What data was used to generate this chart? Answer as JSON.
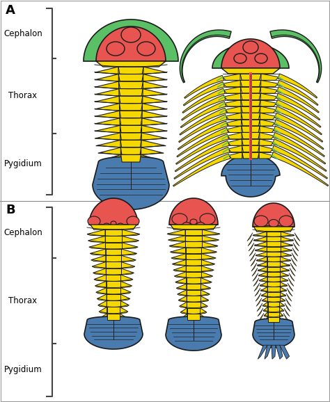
{
  "colors": {
    "cephalon": "#E85550",
    "thorax": "#F5D800",
    "pygidium": "#4A7BAF",
    "green": "#5BBF65",
    "outline": "#1A1A1A",
    "background": "#FFFFFF",
    "bracket": "#444444"
  },
  "labels": {
    "A": "A",
    "B": "B",
    "cephalon": "Cephalon",
    "thorax": "Thorax",
    "pygidium": "Pygidium"
  },
  "figsize": [
    4.74,
    5.78
  ],
  "dpi": 100
}
